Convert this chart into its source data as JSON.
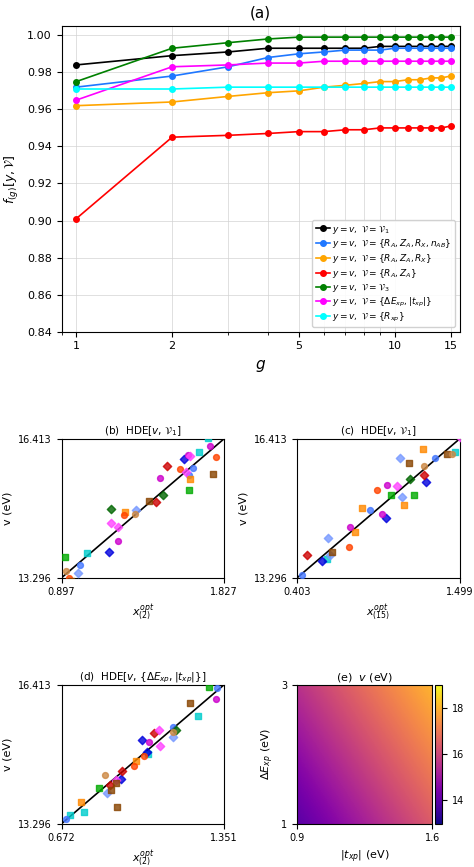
{
  "panel_a": {
    "title": "(a)",
    "g_values": [
      1,
      2,
      3,
      4,
      5,
      6,
      7,
      8,
      9,
      10,
      11,
      12,
      13,
      14,
      15
    ],
    "series": [
      {
        "label": "y = v, V = V_1",
        "color": "black",
        "values": [
          0.984,
          0.989,
          0.991,
          0.993,
          0.993,
          0.993,
          0.993,
          0.993,
          0.994,
          0.994,
          0.994,
          0.994,
          0.994,
          0.994,
          0.994
        ]
      },
      {
        "label": "y = v, V = {R_A, Z_A, R_X, n_AB}",
        "color": "#1f77ff",
        "values": [
          0.972,
          0.978,
          0.983,
          0.988,
          0.99,
          0.991,
          0.992,
          0.992,
          0.992,
          0.993,
          0.993,
          0.993,
          0.993,
          0.993,
          0.993
        ]
      },
      {
        "label": "y = v, V = {R_A, Z_A, R_X}",
        "color": "orange",
        "values": [
          0.962,
          0.964,
          0.967,
          0.969,
          0.97,
          0.972,
          0.973,
          0.974,
          0.975,
          0.975,
          0.976,
          0.976,
          0.977,
          0.977,
          0.978
        ]
      },
      {
        "label": "y = v, V = {R_A, Z_A}",
        "color": "red",
        "values": [
          0.901,
          0.945,
          0.946,
          0.947,
          0.948,
          0.948,
          0.949,
          0.949,
          0.95,
          0.95,
          0.95,
          0.95,
          0.95,
          0.95,
          0.951
        ]
      },
      {
        "label": "y = v, V = V_3",
        "color": "green",
        "values": [
          0.975,
          0.993,
          0.996,
          0.998,
          0.999,
          0.999,
          0.999,
          0.999,
          0.999,
          0.999,
          0.999,
          0.999,
          0.999,
          0.999,
          0.999
        ]
      },
      {
        "label": "y = v, V = {Delta E_xp, |t_xp|}",
        "color": "magenta",
        "values": [
          0.965,
          0.983,
          0.984,
          0.985,
          0.985,
          0.986,
          0.986,
          0.986,
          0.986,
          0.986,
          0.986,
          0.986,
          0.986,
          0.986,
          0.986
        ]
      },
      {
        "label": "y = v, V = {R_xp}",
        "color": "cyan",
        "values": [
          0.971,
          0.971,
          0.972,
          0.972,
          0.972,
          0.972,
          0.972,
          0.972,
          0.972,
          0.972,
          0.972,
          0.972,
          0.972,
          0.972,
          0.972
        ]
      }
    ],
    "xlabel": "g",
    "ylabel": "f_(g)[y, V]",
    "ylim": [
      0.84,
      1.005
    ],
    "yticks": [
      0.84,
      0.86,
      0.88,
      0.9,
      0.92,
      0.94,
      0.96,
      0.98,
      1.0
    ]
  },
  "panel_b": {
    "title": "(b)  HDE[v, V_1]",
    "xlabel_base": "x^opt_(2)",
    "xlim": [
      0.897,
      1.827
    ],
    "xlabel_lo": "0.897",
    "xlabel_hi": "1.827",
    "ylabel": "v (eV)",
    "ylim": [
      13.296,
      16.413
    ],
    "ylabel_lo": "13.296",
    "ylabel_hi": "16.413"
  },
  "panel_c": {
    "title": "(c)  HDE[v, V_1]",
    "xlabel_base": "x^opt_(15)",
    "xlim": [
      0.403,
      1.499
    ],
    "xlabel_lo": "0.403",
    "xlabel_hi": "1.499",
    "ylabel": "v (eV)",
    "ylim": [
      13.296,
      16.413
    ],
    "ylabel_lo": "13.296",
    "ylabel_hi": "16.413"
  },
  "panel_d": {
    "title": "(d)  HDE[v, {Delta E_xp, |t_xp|}]",
    "xlabel_base": "x^opt_(2)",
    "xlim": [
      0.672,
      1.351
    ],
    "xlabel_lo": "0.672",
    "xlabel_hi": "1.351",
    "ylabel": "v (eV)",
    "ylim": [
      13.296,
      16.413
    ],
    "ylabel_lo": "13.296",
    "ylabel_hi": "16.413"
  },
  "panel_e": {
    "title": "(e)  v (eV)",
    "xlabel": "|t_xp| (eV)",
    "ylabel": "Delta E_xp (eV)",
    "xlim": [
      0.9,
      1.6
    ],
    "ylim": [
      1.0,
      3.0
    ],
    "xticks": [
      0.9,
      1.6
    ],
    "yticks": [
      1.0,
      3.0
    ],
    "colorbar_ticks": [
      14,
      16,
      18
    ],
    "vmin": 13.0,
    "vmax": 19.0
  },
  "scatter_colors": [
    "#00ffff",
    "#0000ff",
    "#4444ff",
    "#6688ff",
    "#88aaff",
    "#ff8800",
    "#ff4400",
    "#cc0000",
    "#00aa00",
    "#008800",
    "#006600",
    "#aa00aa",
    "#ff66ff",
    "#ff00ff",
    "#888888",
    "#444444",
    "#ff6666",
    "#66ff66",
    "#6666ff",
    "#ffff00",
    "#00ffaa",
    "#ff0066"
  ]
}
